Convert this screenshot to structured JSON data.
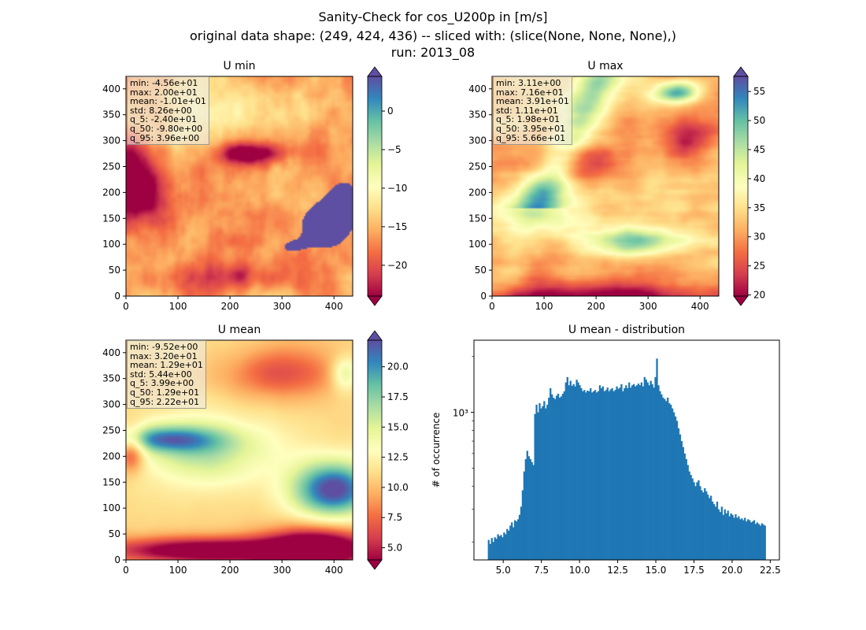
{
  "figure": {
    "title_lines": [
      "Sanity-Check for cos_U200p in [m/s]",
      "original data shape: (249, 424, 436) -- sliced with: (slice(None, None, None),)",
      "run: 2013_08"
    ]
  },
  "colormap": "Spectral",
  "chart_data": [
    {
      "type": "heatmap",
      "title": "U min",
      "xlim": [
        0,
        436
      ],
      "ylim": [
        0,
        424
      ],
      "xticks": [
        0,
        100,
        200,
        300,
        400
      ],
      "yticks": [
        0,
        50,
        100,
        150,
        200,
        250,
        300,
        350,
        400
      ],
      "colorbar": {
        "vmin": -24,
        "vmax": 4.5,
        "ticks": [
          -20,
          -15,
          -10,
          -5,
          0
        ],
        "extend": "both"
      },
      "stats": [
        "min: -4.56e+01",
        "max: 2.00e+01",
        "mean: -1.01e+01",
        "std: 8.26e+00",
        "q_5: -2.40e+01",
        "q_50: -9.80e+00",
        "q_95: 3.96e+00"
      ]
    },
    {
      "type": "heatmap",
      "title": "U max",
      "xlim": [
        0,
        436
      ],
      "ylim": [
        0,
        424
      ],
      "xticks": [
        0,
        100,
        200,
        300,
        400
      ],
      "yticks": [
        0,
        50,
        100,
        150,
        200,
        250,
        300,
        350,
        400
      ],
      "colorbar": {
        "vmin": 19.8,
        "vmax": 57.6,
        "ticks": [
          20,
          25,
          30,
          35,
          40,
          45,
          50,
          55
        ],
        "extend": "both"
      },
      "stats": [
        "min: 3.11e+00",
        "max: 7.16e+01",
        "mean: 3.91e+01",
        "std: 1.11e+01",
        "q_5: 1.98e+01",
        "q_50: 3.95e+01",
        "q_95: 5.66e+01"
      ]
    },
    {
      "type": "heatmap",
      "title": "U mean",
      "xlim": [
        0,
        436
      ],
      "ylim": [
        0,
        424
      ],
      "xticks": [
        0,
        100,
        200,
        300,
        400
      ],
      "yticks": [
        0,
        50,
        100,
        150,
        200,
        250,
        300,
        350,
        400
      ],
      "colorbar": {
        "vmin": 3.99,
        "vmax": 22.2,
        "ticks": [
          5.0,
          7.5,
          10.0,
          12.5,
          15.0,
          17.5,
          20.0
        ],
        "tick_labels": [
          "5.0",
          "7.5",
          "10.0",
          "12.5",
          "15.0",
          "17.5",
          "20.0"
        ],
        "extend": "both"
      },
      "stats": [
        "min: -9.52e+00",
        "max: 3.20e+01",
        "mean: 1.29e+01",
        "std: 5.44e+00",
        "q_5: 3.99e+00",
        "q_50: 1.29e+01",
        "q_95: 2.22e+01"
      ]
    },
    {
      "type": "bar",
      "title": "U mean - distribution",
      "ylabel": "# of occurrence",
      "yscale": "log",
      "color": "#1f77b4",
      "xlim": [
        3.08,
        23.1
      ],
      "ylim": [
        160,
        2450
      ],
      "xticks": [
        5.0,
        7.5,
        10.0,
        12.5,
        15.0,
        17.5,
        20.0,
        22.5
      ],
      "xtick_labels": [
        "5.0",
        "7.5",
        "10.0",
        "12.5",
        "15.0",
        "17.5",
        "20.0",
        "22.5"
      ],
      "yticks_major": [
        1000
      ],
      "ytick_labels": [
        "10³"
      ],
      "yticks_minor": [
        200,
        300,
        400,
        500,
        600,
        700,
        800,
        900,
        2000
      ],
      "bin_start": 3.99,
      "bin_end": 22.2,
      "counts": [
        205,
        195,
        210,
        200,
        212,
        208,
        220,
        215,
        218,
        212,
        225,
        220,
        235,
        230,
        245,
        255,
        240,
        262,
        258,
        265,
        280,
        310,
        380,
        480,
        560,
        620,
        580,
        560,
        540,
        520,
        980,
        1100,
        1000,
        1120,
        1050,
        1080,
        1150,
        1050,
        1100,
        1200,
        1350,
        1250,
        1200,
        1180,
        1230,
        1260,
        1200,
        1220,
        1260,
        1300,
        1450,
        1550,
        1400,
        1480,
        1390,
        1420,
        1380,
        1500,
        1450,
        1400,
        1350,
        1300,
        1320,
        1280,
        1310,
        1300,
        1350,
        1280,
        1300,
        1320,
        1280,
        1300,
        1400,
        1350,
        1380,
        1300,
        1320,
        1360,
        1300,
        1330,
        1350,
        1300,
        1320,
        1380,
        1340,
        1360,
        1420,
        1300,
        1350,
        1400,
        1350,
        1450,
        1360,
        1400,
        1420,
        1380,
        1400,
        1430,
        1400,
        1450,
        1380,
        1550,
        1500,
        1450,
        1400,
        1480,
        1420,
        1360,
        1550,
        1950,
        1400,
        1300,
        1250,
        1200,
        1180,
        1150,
        1200,
        1120,
        1100,
        1050,
        1000,
        950,
        900,
        820,
        760,
        700,
        650,
        600,
        560,
        520,
        480,
        460,
        440,
        420,
        400,
        420,
        430,
        400,
        380,
        370,
        390,
        375,
        360,
        345,
        355,
        330,
        320,
        310,
        330,
        300,
        290,
        310,
        280,
        300,
        285,
        295,
        275,
        285,
        280,
        270,
        282,
        270,
        275,
        265,
        268,
        262,
        270,
        258,
        265,
        262,
        255,
        258,
        262,
        250,
        255,
        250,
        245,
        252,
        248,
        245
      ]
    }
  ]
}
